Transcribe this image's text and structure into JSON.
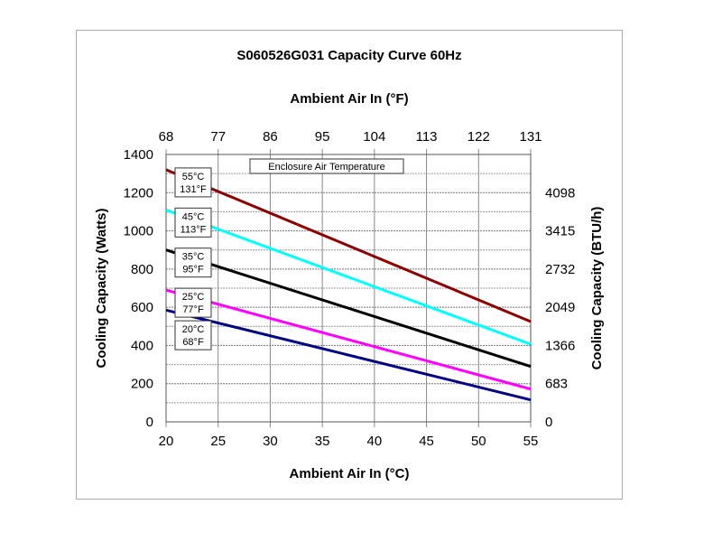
{
  "chart_data": {
    "type": "line",
    "title": "S060526G031 Capacity Curve 60Hz",
    "xlabel": "Ambient Air In (°C)",
    "x2label": "Ambient Air In (°F)",
    "ylabel": "Cooling Capacity (Watts)",
    "y2label": "Cooling Capacity (BTU/h)",
    "xlim": [
      20,
      55
    ],
    "ylim": [
      0,
      1400
    ],
    "x_ticks": [
      20,
      25,
      30,
      35,
      40,
      45,
      50,
      55
    ],
    "x2_ticks": [
      "68",
      "77",
      "86",
      "95",
      "104",
      "113",
      "122",
      "131"
    ],
    "y_ticks": [
      0,
      200,
      400,
      600,
      800,
      1000,
      1200,
      1400
    ],
    "y2_ticks": [
      {
        "label": "0",
        "watts": 0
      },
      {
        "label": "683",
        "watts": 200
      },
      {
        "label": "1366",
        "watts": 400
      },
      {
        "label": "2049",
        "watts": 600
      },
      {
        "label": "2732",
        "watts": 800
      },
      {
        "label": "3415",
        "watts": 1000
      },
      {
        "label": "4098",
        "watts": 1200
      }
    ],
    "grid": true,
    "legend_title": "Enclosure Air Temperature",
    "series": [
      {
        "name": "55°C",
        "name2": "131°F",
        "color": "#8b0000",
        "x": [
          20,
          55
        ],
        "y": [
          1320,
          525
        ]
      },
      {
        "name": "45°C",
        "name2": "113°F",
        "color": "#00ffff",
        "x": [
          20,
          55
        ],
        "y": [
          1110,
          407
        ]
      },
      {
        "name": "35°C",
        "name2": "95°F",
        "color": "#000000",
        "x": [
          20,
          55
        ],
        "y": [
          900,
          290
        ]
      },
      {
        "name": "25°C",
        "name2": "77°F",
        "color": "#ff00ff",
        "x": [
          20,
          55
        ],
        "y": [
          690,
          172
        ]
      },
      {
        "name": "20°C",
        "name2": "68°F",
        "color": "#000080",
        "x": [
          20,
          55
        ],
        "y": [
          585,
          115
        ]
      }
    ]
  }
}
